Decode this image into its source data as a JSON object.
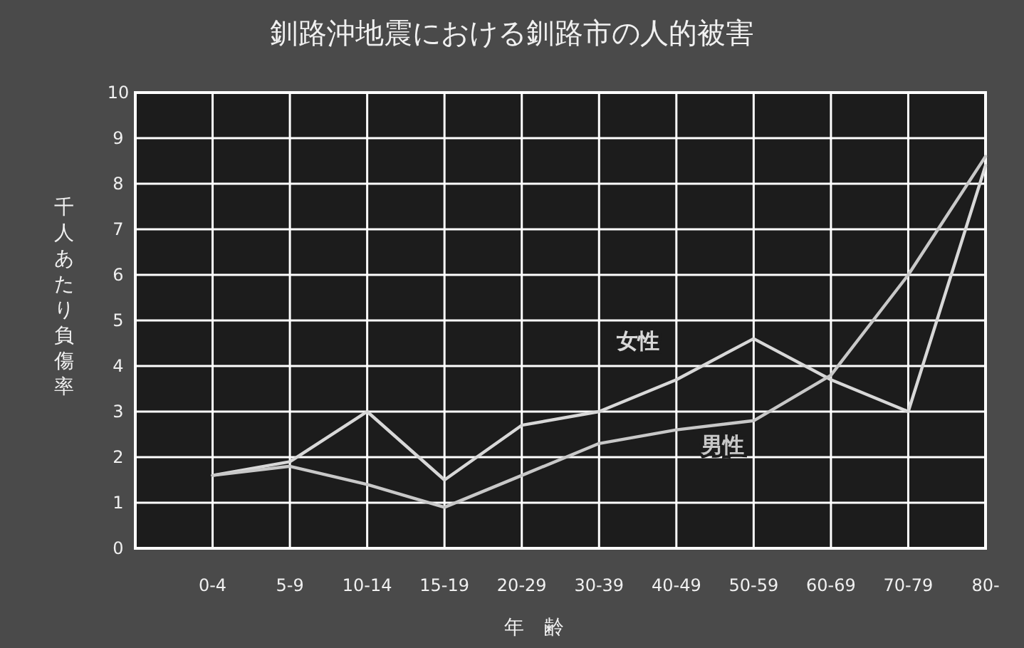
{
  "chart_data": {
    "type": "line",
    "title": "釧路沖地震における釧路市の人的被害",
    "xlabel": "年齢",
    "ylabel": "千人あたり負傷率",
    "categories": [
      "0-4",
      "5-9",
      "10-14",
      "15-19",
      "20-29",
      "30-39",
      "40-49",
      "50-59",
      "60-69",
      "70-79",
      "80-"
    ],
    "series": [
      {
        "name": "女性",
        "color": "#d8d8d8",
        "values": [
          1.6,
          1.9,
          3.0,
          1.5,
          2.7,
          3.0,
          3.7,
          4.6,
          3.7,
          3.0,
          8.4
        ]
      },
      {
        "name": "男性",
        "color": "#c8c8c8",
        "values": [
          1.6,
          1.8,
          1.4,
          0.9,
          1.6,
          2.3,
          2.6,
          2.8,
          3.8,
          6.0,
          8.6
        ]
      }
    ],
    "ylim": [
      0,
      10
    ],
    "yticks": [
      0,
      1,
      2,
      3,
      4,
      5,
      6,
      7,
      8,
      9,
      10
    ],
    "grid": true,
    "marker": "none",
    "line_style": "solid"
  }
}
